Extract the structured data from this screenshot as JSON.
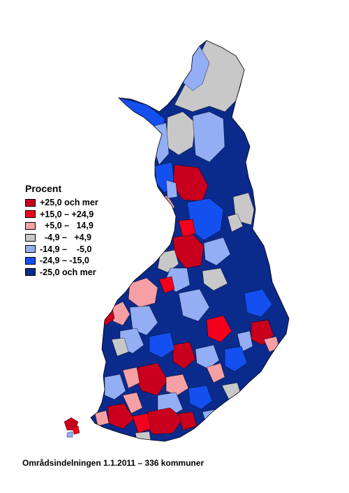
{
  "legend": {
    "title": "Procent",
    "items": [
      {
        "label": "+25,0 och mer",
        "color": "#c8001e"
      },
      {
        "label": "+15,0 – +24,9",
        "color": "#f2001c"
      },
      {
        "label": "  +5,0 –   14,9",
        "color": "#f6a0a6"
      },
      {
        "label": "  -4,9 –   +4,9",
        "color": "#c8c8c8"
      },
      {
        "label": "-14,9 –    -5,0",
        "color": "#93aef5"
      },
      {
        "label": "-24,9 – -15,0",
        "color": "#1450f0"
      },
      {
        "label": "-25,0 och mer",
        "color": "#0a2a8c"
      }
    ]
  },
  "caption": "Områdsindelningen 1.1.2011 – 336 kommuner",
  "colors": {
    "land_base": "#0a2a8c",
    "border": "#000000"
  }
}
